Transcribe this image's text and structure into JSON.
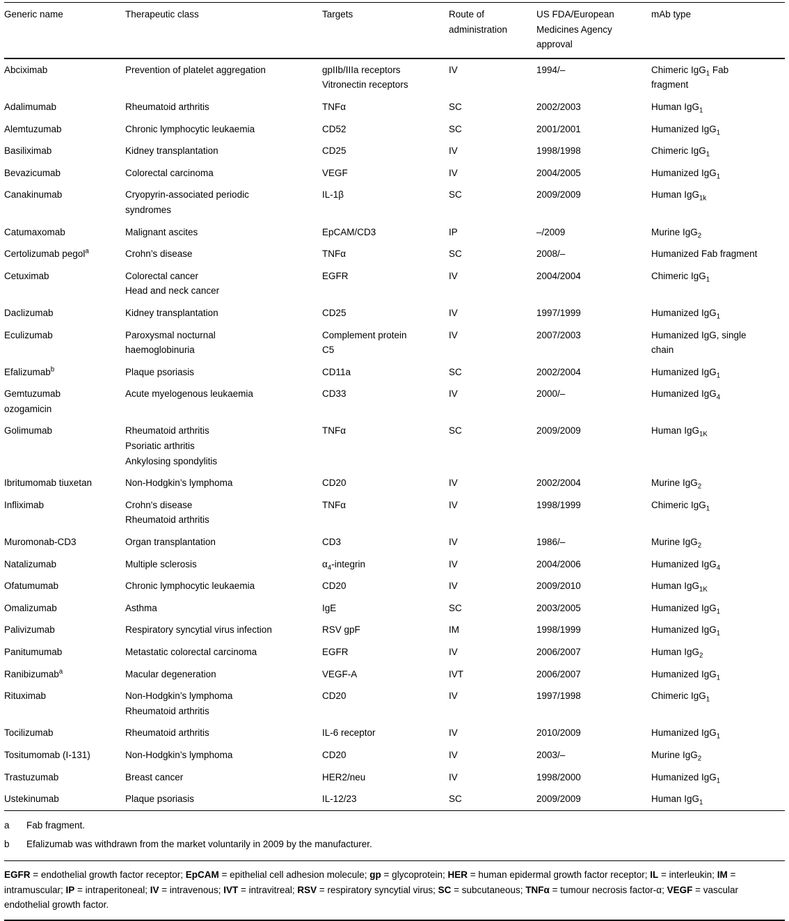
{
  "table": {
    "columns": [
      {
        "key": "generic_name",
        "label": "Generic name"
      },
      {
        "key": "therapeutic_class",
        "label": "Therapeutic class"
      },
      {
        "key": "targets",
        "label": "Targets"
      },
      {
        "key": "route",
        "label": [
          "Route of",
          "administration"
        ]
      },
      {
        "key": "approval",
        "label": [
          "US FDA/European",
          "Medicines Agency",
          "approval"
        ]
      },
      {
        "key": "mab_type",
        "label": "mAb type"
      }
    ],
    "rows": [
      {
        "generic_name": "Abciximab",
        "therapeutic_class": "Prevention of platelet aggregation",
        "targets": [
          "gpIIb/IIIa receptors",
          "Vitronectin receptors"
        ],
        "route": "IV",
        "approval": "1994/–",
        "mab_type": [
          "Chimeric IgG~1~ Fab",
          "fragment"
        ]
      },
      {
        "generic_name": "Adalimumab",
        "therapeutic_class": "Rheumatoid arthritis",
        "targets": "TNFα",
        "route": "SC",
        "approval": "2002/2003",
        "mab_type": "Human IgG~1~"
      },
      {
        "generic_name": "Alemtuzumab",
        "therapeutic_class": "Chronic lymphocytic leukaemia",
        "targets": "CD52",
        "route": "SC",
        "approval": "2001/2001",
        "mab_type": "Humanized IgG~1~"
      },
      {
        "generic_name": "Basiliximab",
        "therapeutic_class": "Kidney transplantation",
        "targets": "CD25",
        "route": "IV",
        "approval": "1998/1998",
        "mab_type": "Chimeric IgG~1~"
      },
      {
        "generic_name": "Bevazicumab",
        "therapeutic_class": "Colorectal carcinoma",
        "targets": "VEGF",
        "route": "IV",
        "approval": "2004/2005",
        "mab_type": "Humanized IgG~1~"
      },
      {
        "generic_name": "Canakinumab",
        "therapeutic_class": [
          "Cryopyrin-associated periodic",
          "syndromes"
        ],
        "targets": "IL-1β",
        "route": "SC",
        "approval": "2009/2009",
        "mab_type": "Human IgG~1k~"
      },
      {
        "generic_name": "Catumaxomab",
        "therapeutic_class": "Malignant ascites",
        "targets": "EpCAM/CD3",
        "route": "IP",
        "approval": "–/2009",
        "mab_type": "Murine IgG~2~"
      },
      {
        "generic_name": "Certolizumab pegol^a^",
        "therapeutic_class": "Crohn’s disease",
        "targets": "TNFα",
        "route": "SC",
        "approval": "2008/–",
        "mab_type": "Humanized Fab fragment"
      },
      {
        "generic_name": "Cetuximab",
        "therapeutic_class": [
          "Colorectal cancer",
          "Head and neck cancer"
        ],
        "targets": "EGFR",
        "route": "IV",
        "approval": "2004/2004",
        "mab_type": "Chimeric IgG~1~"
      },
      {
        "generic_name": "Daclizumab",
        "therapeutic_class": "Kidney transplantation",
        "targets": "CD25",
        "route": "IV",
        "approval": "1997/1999",
        "mab_type": "Humanized IgG~1~"
      },
      {
        "generic_name": "Eculizumab",
        "therapeutic_class": [
          "Paroxysmal nocturnal",
          "haemoglobinuria"
        ],
        "targets": [
          "Complement protein",
          "C5"
        ],
        "route": "IV",
        "approval": "2007/2003",
        "mab_type": [
          "Humanized IgG, single",
          "chain"
        ]
      },
      {
        "generic_name": "Efalizumab^b^",
        "therapeutic_class": "Plaque psoriasis",
        "targets": "CD11a",
        "route": "SC",
        "approval": "2002/2004",
        "mab_type": "Humanized IgG~1~"
      },
      {
        "generic_name": [
          "Gemtuzumab",
          "ozogamicin"
        ],
        "therapeutic_class": "Acute myelogenous leukaemia",
        "targets": "CD33",
        "route": "IV",
        "approval": "2000/–",
        "mab_type": "Humanized IgG~4~"
      },
      {
        "generic_name": "Golimumab",
        "therapeutic_class": [
          "Rheumatoid arthritis",
          "Psoriatic arthritis",
          "Ankylosing spondylitis"
        ],
        "targets": "TNFα",
        "route": "SC",
        "approval": "2009/2009",
        "mab_type": "Human IgG~1K~"
      },
      {
        "generic_name": "Ibritumomab tiuxetan",
        "therapeutic_class": "Non-Hodgkin’s lymphoma",
        "targets": "CD20",
        "route": "IV",
        "approval": "2002/2004",
        "mab_type": "Murine IgG~2~"
      },
      {
        "generic_name": "Infliximab",
        "therapeutic_class": [
          "Crohn's disease",
          "Rheumatoid arthritis"
        ],
        "targets": "TNFα",
        "route": "IV",
        "approval": "1998/1999",
        "mab_type": "Chimeric IgG~1~"
      },
      {
        "generic_name": "Muromonab-CD3",
        "therapeutic_class": "Organ transplantation",
        "targets": "CD3",
        "route": "IV",
        "approval": "1986/–",
        "mab_type": "Murine IgG~2~"
      },
      {
        "generic_name": "Natalizumab",
        "therapeutic_class": "Multiple sclerosis",
        "targets": "α~4~-integrin",
        "route": "IV",
        "approval": "2004/2006",
        "mab_type": "Humanized IgG~4~"
      },
      {
        "generic_name": "Ofatumumab",
        "therapeutic_class": "Chronic lymphocytic leukaemia",
        "targets": "CD20",
        "route": "IV",
        "approval": "2009/2010",
        "mab_type": "Human IgG~1K~"
      },
      {
        "generic_name": "Omalizumab",
        "therapeutic_class": "Asthma",
        "targets": "IgE",
        "route": "SC",
        "approval": "2003/2005",
        "mab_type": "Humanized IgG~1~"
      },
      {
        "generic_name": "Palivizumab",
        "therapeutic_class": "Respiratory syncytial virus infection",
        "targets": "RSV gpF",
        "route": "IM",
        "approval": "1998/1999",
        "mab_type": "Humanized IgG~1~"
      },
      {
        "generic_name": "Panitumumab",
        "therapeutic_class": "Metastatic colorectal carcinoma",
        "targets": "EGFR",
        "route": "IV",
        "approval": "2006/2007",
        "mab_type": "Human IgG~2~"
      },
      {
        "generic_name": "Ranibizumab^a^",
        "therapeutic_class": "Macular degeneration",
        "targets": "VEGF-A",
        "route": "IVT",
        "approval": "2006/2007",
        "mab_type": "Humanized IgG~1~"
      },
      {
        "generic_name": "Rituximab",
        "therapeutic_class": [
          "Non-Hodgkin’s lymphoma",
          "Rheumatoid arthritis"
        ],
        "targets": "CD20",
        "route": "IV",
        "approval": "1997/1998",
        "mab_type": "Chimeric IgG~1~"
      },
      {
        "generic_name": "Tocilizumab",
        "therapeutic_class": "Rheumatoid arthritis",
        "targets": "IL-6 receptor",
        "route": "IV",
        "approval": "2010/2009",
        "mab_type": "Humanized IgG~1~"
      },
      {
        "generic_name": "Tositumomab (I-131)",
        "therapeutic_class": "Non-Hodgkin’s lymphoma",
        "targets": "CD20",
        "route": "IV",
        "approval": "2003/–",
        "mab_type": "Murine IgG~2~"
      },
      {
        "generic_name": "Trastuzumab",
        "therapeutic_class": "Breast cancer",
        "targets": "HER2/neu",
        "route": "IV",
        "approval": "1998/2000",
        "mab_type": "Humanized IgG~1~"
      },
      {
        "generic_name": "Ustekinumab",
        "therapeutic_class": "Plaque psoriasis",
        "targets": "IL-12/23",
        "route": "SC",
        "approval": "2009/2009",
        "mab_type": "Human IgG~1~"
      }
    ]
  },
  "footnotes": [
    {
      "marker": "a",
      "text": "Fab fragment."
    },
    {
      "marker": "b",
      "text": "Efalizumab was withdrawn from the market voluntarily in 2009 by the manufacturer."
    }
  ],
  "abbreviations": {
    "joiner": " = ",
    "item_separator": "; ",
    "terminator": ".",
    "items": [
      {
        "term": "EGFR",
        "definition": "endothelial growth factor receptor"
      },
      {
        "term": "EpCAM",
        "definition": "epithelial cell adhesion molecule"
      },
      {
        "term": "gp",
        "definition": "glycoprotein"
      },
      {
        "term": "HER",
        "definition": "human epidermal growth factor receptor"
      },
      {
        "term": "IL",
        "definition": "interleukin"
      },
      {
        "term": "IM",
        "definition": "intramuscular"
      },
      {
        "term": "IP",
        "definition": "intraperitoneal"
      },
      {
        "term": "IV",
        "definition": "intravenous"
      },
      {
        "term": "IVT",
        "definition": "intravitreal"
      },
      {
        "term": "RSV",
        "definition": "respiratory syncytial virus"
      },
      {
        "term": "SC",
        "definition": "subcutaneous"
      },
      {
        "term": "TNFα",
        "definition": "tumour necrosis factor-α"
      },
      {
        "term": "VEGF",
        "definition": "vascular endothelial growth factor"
      }
    ]
  }
}
